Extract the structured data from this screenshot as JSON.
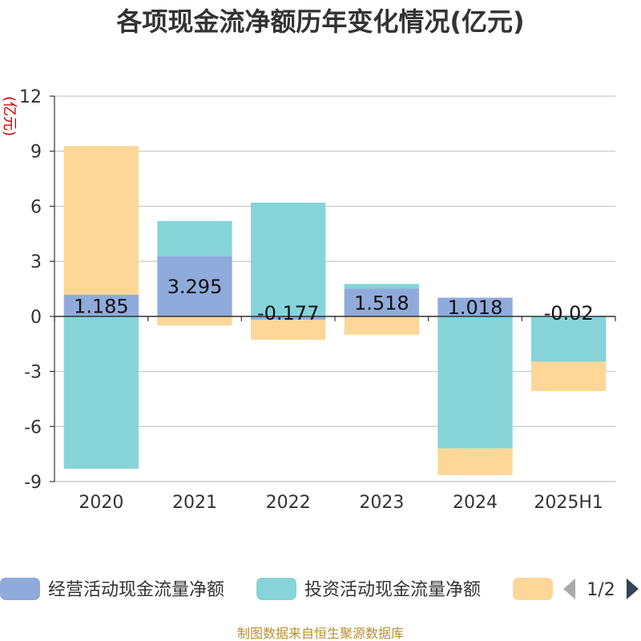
{
  "chart_data": {
    "type": "bar",
    "stacked": true,
    "title": "各项现金流净额历年变化情况(亿元)",
    "ylabel": "(亿元)",
    "categories": [
      "2020",
      "2021",
      "2022",
      "2023",
      "2024",
      "2025H1"
    ],
    "ylim": [
      -9,
      12
    ],
    "yticks": [
      12,
      9,
      6,
      3,
      0,
      -3,
      -6,
      -9
    ],
    "grid": true,
    "series": [
      {
        "name": "经营活动现金流量净额",
        "color": "#8fabdc",
        "values": [
          1.185,
          3.295,
          -0.177,
          1.518,
          1.018,
          -0.02
        ],
        "labels": [
          "1.185",
          "3.295",
          "-0.177",
          "1.518",
          "1.018",
          "-0.02"
        ]
      },
      {
        "name": "投资活动现金流量净额",
        "color": "#86d4d8",
        "values": [
          -8.3,
          1.9,
          6.2,
          0.25,
          -7.2,
          -2.45
        ],
        "labels": []
      },
      {
        "name": "",
        "color": "#fdd798",
        "values": [
          8.1,
          -0.5,
          -1.1,
          -1.0,
          -1.45,
          -1.6
        ],
        "labels": []
      }
    ],
    "legend": {
      "position": "bottom",
      "page": "1/2"
    }
  },
  "source": "制图数据来自恒生聚源数据库"
}
